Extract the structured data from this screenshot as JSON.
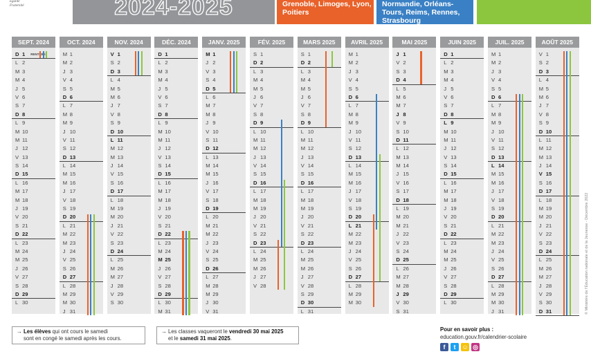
{
  "logo": {
    "line1": "Égalité",
    "line2": "Fraternité"
  },
  "banner": {
    "year": "2024-2025",
    "orange_text": "Grenoble, Limoges, Lyon, Poitiers",
    "blue_text": "Normandie, Orléans-Tours, Reims, Rennes, Strasbourg"
  },
  "colors": {
    "zone_a": "#e8622a",
    "zone_b": "#3a80c4",
    "zone_c": "#8cc63f",
    "header_grey": "#9a9b9d",
    "column_bg": "#e8e8e8"
  },
  "calendar": [
    {
      "name": "SEPT. 2024",
      "start_dow": 6,
      "days": 30,
      "bold": [
        1,
        8,
        15,
        22,
        29
      ],
      "rules": [
        1,
        8,
        15,
        22,
        29
      ],
      "note_day": 1,
      "note": "RENTRÉE",
      "bars": [
        {
          "zone": "a",
          "from": 1,
          "to": 1
        },
        {
          "zone": "b",
          "from": 1,
          "to": 1
        },
        {
          "zone": "c",
          "from": 1,
          "to": 1
        }
      ]
    },
    {
      "name": "OCT. 2024",
      "start_dow": 1,
      "days": 31,
      "bold": [
        6,
        13,
        20,
        27
      ],
      "rules": [
        6,
        13,
        20,
        27
      ],
      "bars": [
        {
          "zone": "a",
          "from": 20,
          "to": 31
        },
        {
          "zone": "b",
          "from": 20,
          "to": 31
        },
        {
          "zone": "c",
          "from": 20,
          "to": 31
        }
      ]
    },
    {
      "name": "NOV. 2024",
      "start_dow": 4,
      "days": 30,
      "bold": [
        1,
        3,
        10,
        11,
        17,
        24
      ],
      "rules": [
        3,
        10,
        17,
        24
      ],
      "bars": [
        {
          "zone": "a",
          "from": 1,
          "to": 3
        },
        {
          "zone": "b",
          "from": 1,
          "to": 3
        },
        {
          "zone": "c",
          "from": 1,
          "to": 3
        }
      ]
    },
    {
      "name": "DÉC. 2024",
      "start_dow": 6,
      "days": 31,
      "bold": [
        1,
        8,
        15,
        22,
        25,
        29
      ],
      "rules": [
        1,
        8,
        15,
        22,
        29
      ],
      "bars": [
        {
          "zone": "a",
          "from": 22,
          "to": 31
        },
        {
          "zone": "b",
          "from": 22,
          "to": 31
        },
        {
          "zone": "c",
          "from": 22,
          "to": 31
        }
      ]
    },
    {
      "name": "JANV. 2025",
      "start_dow": 2,
      "days": 31,
      "bold": [
        1,
        5,
        12,
        19,
        26
      ],
      "rules": [
        5,
        12,
        19,
        26
      ],
      "bars": [
        {
          "zone": "a",
          "from": 1,
          "to": 5
        },
        {
          "zone": "b",
          "from": 1,
          "to": 5
        },
        {
          "zone": "c",
          "from": 1,
          "to": 5
        }
      ]
    },
    {
      "name": "FÉV. 2025",
      "start_dow": 5,
      "days": 28,
      "bold": [
        2,
        9,
        16,
        23
      ],
      "rules": [
        2,
        9,
        16,
        23
      ],
      "bars": [
        {
          "zone": "b",
          "from": 9,
          "to": 23
        },
        {
          "zone": "c",
          "from": 16,
          "to": 28
        },
        {
          "zone": "a",
          "from": 23,
          "to": 28
        }
      ]
    },
    {
      "name": "MARS 2025",
      "start_dow": 5,
      "days": 31,
      "bold": [
        2,
        9,
        16,
        23,
        30
      ],
      "rules": [
        2,
        9,
        16,
        23,
        30
      ],
      "bars": [
        {
          "zone": "c",
          "from": 1,
          "to": 2
        },
        {
          "zone": "a",
          "from": 1,
          "to": 9
        }
      ]
    },
    {
      "name": "AVRIL 2025",
      "start_dow": 1,
      "days": 30,
      "bold": [
        6,
        13,
        20,
        21,
        27
      ],
      "rules": [
        6,
        13,
        20,
        27
      ],
      "bars": [
        {
          "zone": "b",
          "from": 6,
          "to": 21
        },
        {
          "zone": "c",
          "from": 13,
          "to": 27
        },
        {
          "zone": "a",
          "from": 20,
          "to": 30
        }
      ]
    },
    {
      "name": "MAI 2025",
      "start_dow": 3,
      "days": 31,
      "bold": [
        1,
        4,
        8,
        11,
        18,
        25,
        29
      ],
      "rules": [
        4,
        11,
        18,
        25
      ],
      "bars": [
        {
          "zone": "a",
          "from": 1,
          "to": 4
        }
      ]
    },
    {
      "name": "JUIN 2025",
      "start_dow": 6,
      "days": 30,
      "bold": [
        1,
        8,
        9,
        15,
        22,
        29
      ],
      "rules": [
        1,
        8,
        15,
        22,
        29
      ],
      "bars": []
    },
    {
      "name": "JUIL. 2025",
      "start_dow": 1,
      "days": 31,
      "bold": [
        6,
        13,
        14,
        20,
        27
      ],
      "rules": [
        6,
        13,
        20,
        27
      ],
      "bars": [
        {
          "zone": "a",
          "from": 6,
          "to": 31
        },
        {
          "zone": "b",
          "from": 6,
          "to": 31
        },
        {
          "zone": "c",
          "from": 6,
          "to": 31
        }
      ]
    },
    {
      "name": "AOÛT 2025",
      "start_dow": 4,
      "days": 31,
      "bold": [
        3,
        10,
        15,
        17,
        24,
        31
      ],
      "rules": [
        3,
        10,
        17,
        24,
        31
      ],
      "bars": [
        {
          "zone": "a",
          "from": 1,
          "to": 31
        },
        {
          "zone": "b",
          "from": 1,
          "to": 31
        },
        {
          "zone": "c",
          "from": 1,
          "to": 31
        }
      ]
    }
  ],
  "footer": {
    "box1_prefix": "Les élèves",
    "box1_line1": " qui ont cours le samedi",
    "box1_line2": "sont en congé le samedi après les cours.",
    "box2_line1_pre": "Les classes vaqueront le ",
    "box2_line1_bold": "vendredi 30 mai 2025",
    "box2_line2_pre": "et le ",
    "box2_line2_bold": "samedi 31 mai 2025",
    "box2_line2_post": ".",
    "more_title": "Pour en savoir plus :",
    "more_url": "education.gouv.fr/calendrier-scolaire",
    "socials": [
      {
        "icon": "facebook-icon",
        "glyph": "f",
        "color": "#3b5998"
      },
      {
        "icon": "twitter-icon",
        "glyph": "t",
        "color": "#1da1f2"
      },
      {
        "icon": "snapchat-icon",
        "glyph": "☺",
        "color": "#f4c20d"
      },
      {
        "icon": "instagram-icon",
        "glyph": "◎",
        "color": "#c13584"
      }
    ]
  },
  "side_credit": "© Ministère de l'Éducation nationale et de la Jeunesse - Décembre 2022",
  "weekday_letters": [
    "L",
    "M",
    "M",
    "J",
    "V",
    "S",
    "D"
  ]
}
